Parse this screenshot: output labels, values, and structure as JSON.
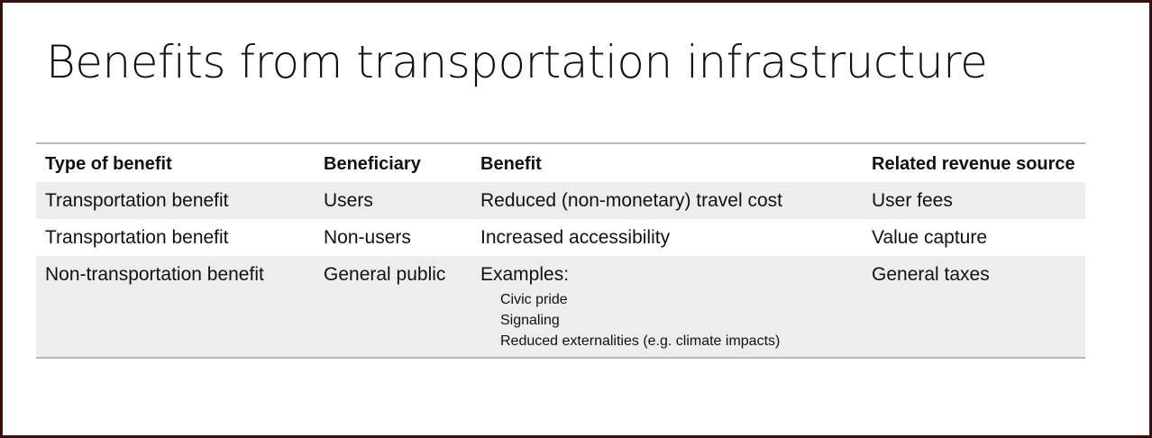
{
  "slide": {
    "title": "Benefits from transportation infrastructure"
  },
  "table": {
    "headers": [
      "Type of benefit",
      "Beneficiary",
      "Benefit",
      "Related revenue source"
    ],
    "rows": [
      {
        "type": "Transportation benefit",
        "beneficiary": "Users",
        "benefit": "Reduced (non-monetary) travel cost",
        "revenue": "User fees"
      },
      {
        "type": "Transportation benefit",
        "beneficiary": "Non-users",
        "benefit": "Increased accessibility",
        "revenue": "Value capture"
      },
      {
        "type": "Non-transportation benefit",
        "beneficiary": "General public",
        "benefit": "Examples:",
        "examples": [
          "Civic pride",
          "Signaling",
          "Reduced externalities (e.g. climate impacts)"
        ],
        "revenue": "General taxes"
      }
    ]
  },
  "colors": {
    "frame_border": "#3a0f0f",
    "row_shade": "#ededed",
    "rule_line": "#b8b8b8"
  }
}
